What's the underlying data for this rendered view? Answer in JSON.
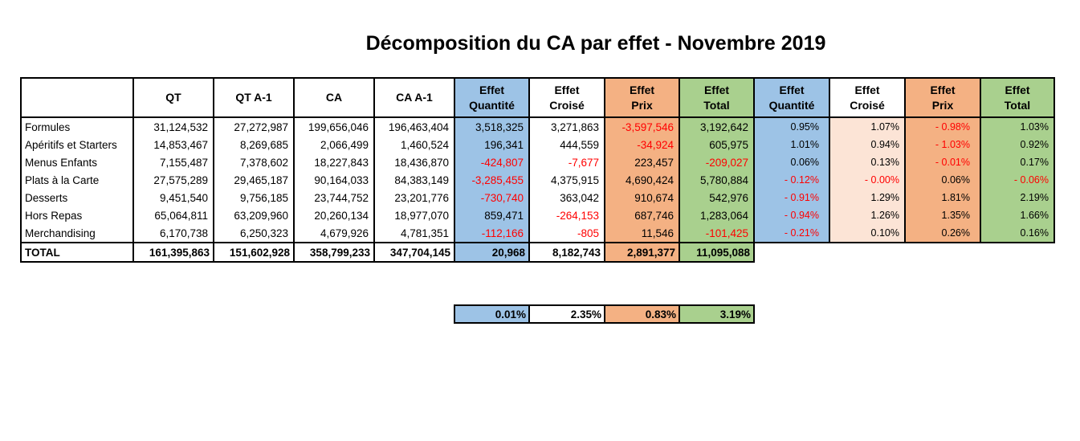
{
  "title": "Décomposition du CA par effet - Novembre 2019",
  "headers": [
    "",
    "QT",
    "QT A-1",
    "CA",
    "CA A-1",
    "Effet\nQuantité",
    "Effet\nCroisé",
    "Effet\nPrix",
    "Effet\nTotal",
    "Effet\nQuantité",
    "Effet\nCroisé",
    "Effet\nPrix",
    "Effet\nTotal"
  ],
  "rows": [
    {
      "name": "Formules",
      "qt": "31,124,532",
      "qt_a1": "27,272,987",
      "ca": "199,656,046",
      "ca_a1": "196,463,404",
      "eq": "3,518,325",
      "ec": "3,271,863",
      "ep": "-3,597,546",
      "et": "3,192,642",
      "pq": "0.95%",
      "pc": "1.07%",
      "pp": "- 0.98%",
      "pt": "1.03%"
    },
    {
      "name": "Apéritifs et Starters",
      "qt": "14,853,467",
      "qt_a1": "8,269,685",
      "ca": "2,066,499",
      "ca_a1": "1,460,524",
      "eq": "196,341",
      "ec": "444,559",
      "ep": "-34,924",
      "et": "605,975",
      "pq": "1.01%",
      "pc": "0.94%",
      "pp": "- 1.03%",
      "pt": "0.92%"
    },
    {
      "name": "Menus Enfants",
      "qt": "7,155,487",
      "qt_a1": "7,378,602",
      "ca": "18,227,843",
      "ca_a1": "18,436,870",
      "eq": "-424,807",
      "ec": "-7,677",
      "ep": "223,457",
      "et": "-209,027",
      "pq": "0.06%",
      "pc": "0.13%",
      "pp": "- 0.01%",
      "pt": "0.17%"
    },
    {
      "name": "Plats à la Carte",
      "qt": "27,575,289",
      "qt_a1": "29,465,187",
      "ca": "90,164,033",
      "ca_a1": "84,383,149",
      "eq": "-3,285,455",
      "ec": "4,375,915",
      "ep": "4,690,424",
      "et": "5,780,884",
      "pq": "- 0.12%",
      "pc": "- 0.00%",
      "pp": "0.06%",
      "pt": "- 0.06%"
    },
    {
      "name": "Desserts",
      "qt": "9,451,540",
      "qt_a1": "9,756,185",
      "ca": "23,744,752",
      "ca_a1": "23,201,776",
      "eq": "-730,740",
      "ec": "363,042",
      "ep": "910,674",
      "et": "542,976",
      "pq": "- 0.91%",
      "pc": "1.29%",
      "pp": "1.81%",
      "pt": "2.19%"
    },
    {
      "name": "Hors Repas",
      "qt": "65,064,811",
      "qt_a1": "63,209,960",
      "ca": "20,260,134",
      "ca_a1": "18,977,070",
      "eq": "859,471",
      "ec": "-264,153",
      "ep": "687,746",
      "et": "1,283,064",
      "pq": "- 0.94%",
      "pc": "1.26%",
      "pp": "1.35%",
      "pt": "1.66%"
    },
    {
      "name": "Merchandising",
      "qt": "6,170,738",
      "qt_a1": "6,250,323",
      "ca": "4,679,926",
      "ca_a1": "4,781,351",
      "eq": "-112,166",
      "ec": "-805",
      "ep": "11,546",
      "et": "-101,425",
      "pq": "- 0.21%",
      "pc": "0.10%",
      "pp": "0.26%",
      "pt": "0.16%"
    }
  ],
  "total": {
    "name": "TOTAL",
    "qt": "161,395,863",
    "qt_a1": "151,602,928",
    "ca": "358,799,233",
    "ca_a1": "347,704,145",
    "eq": "20,968",
    "ec": "8,182,743",
    "ep": "2,891,377",
    "et": "11,095,088"
  },
  "summary": {
    "pq": "0.01%",
    "pc": "2.35%",
    "pp": "0.83%",
    "pt": "3.19%"
  },
  "colors": {
    "quantite": "#9dc3e6",
    "croise": "#ffffff",
    "prix": "#f4b183",
    "total": "#a9d08e",
    "croise_pct": "#fce4d6",
    "negative": "#ff0000"
  }
}
